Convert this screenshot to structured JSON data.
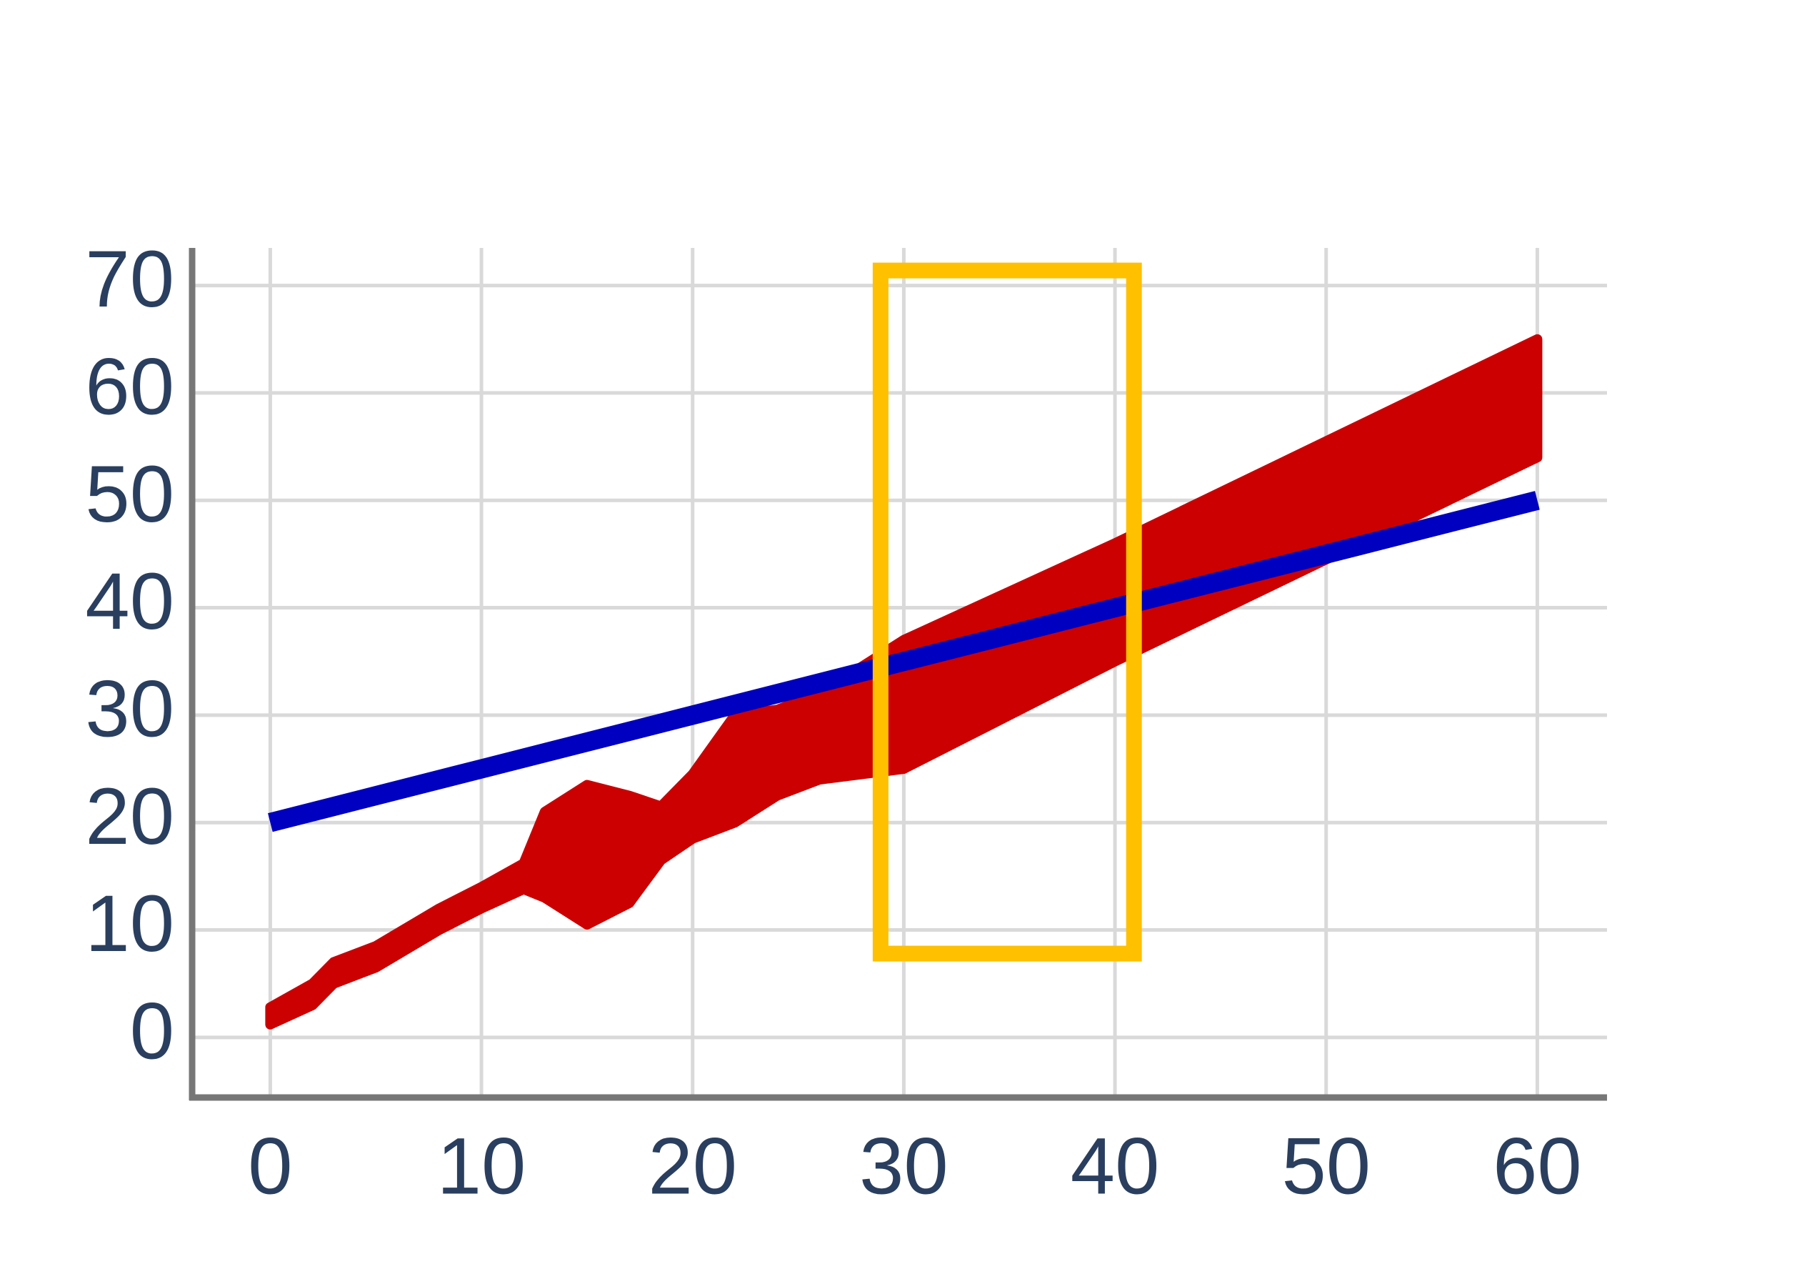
{
  "chart_data": {
    "type": "line",
    "xlim": [
      -3.7,
      63.3
    ],
    "ylim": [
      -5.6,
      73.5
    ],
    "xticks": [
      0,
      10,
      20,
      30,
      40,
      50,
      60
    ],
    "yticks": [
      0,
      10,
      20,
      30,
      40,
      50,
      60,
      70
    ],
    "grid": true,
    "series": [
      {
        "color": "#0000c0",
        "x": [
          0,
          10,
          20,
          30,
          40,
          50,
          60
        ],
        "values": [
          20,
          25,
          30,
          35,
          40,
          45,
          50
        ]
      },
      {
        "color": "#cc0000",
        "x": [
          0,
          2,
          3,
          5,
          8,
          10,
          12,
          13,
          15,
          17,
          18.5,
          20,
          22,
          24,
          26,
          30,
          40,
          50,
          60
        ],
        "values": [
          2,
          4,
          6,
          7.5,
          11,
          13,
          15,
          17,
          17,
          17.5,
          19,
          21.5,
          25,
          26.5,
          28,
          31,
          40.5,
          50,
          59.5
        ],
        "errors": [
          0.8,
          1,
          1,
          1,
          1,
          1,
          1.2,
          4,
          6.5,
          5,
          2.5,
          3,
          5,
          4,
          4,
          6,
          5.5,
          5.5,
          5.5
        ]
      }
    ],
    "highlight": {
      "x": [
        28.9,
        40.9
      ],
      "y": [
        7.8,
        71.4
      ],
      "color": "#ffc000"
    }
  }
}
